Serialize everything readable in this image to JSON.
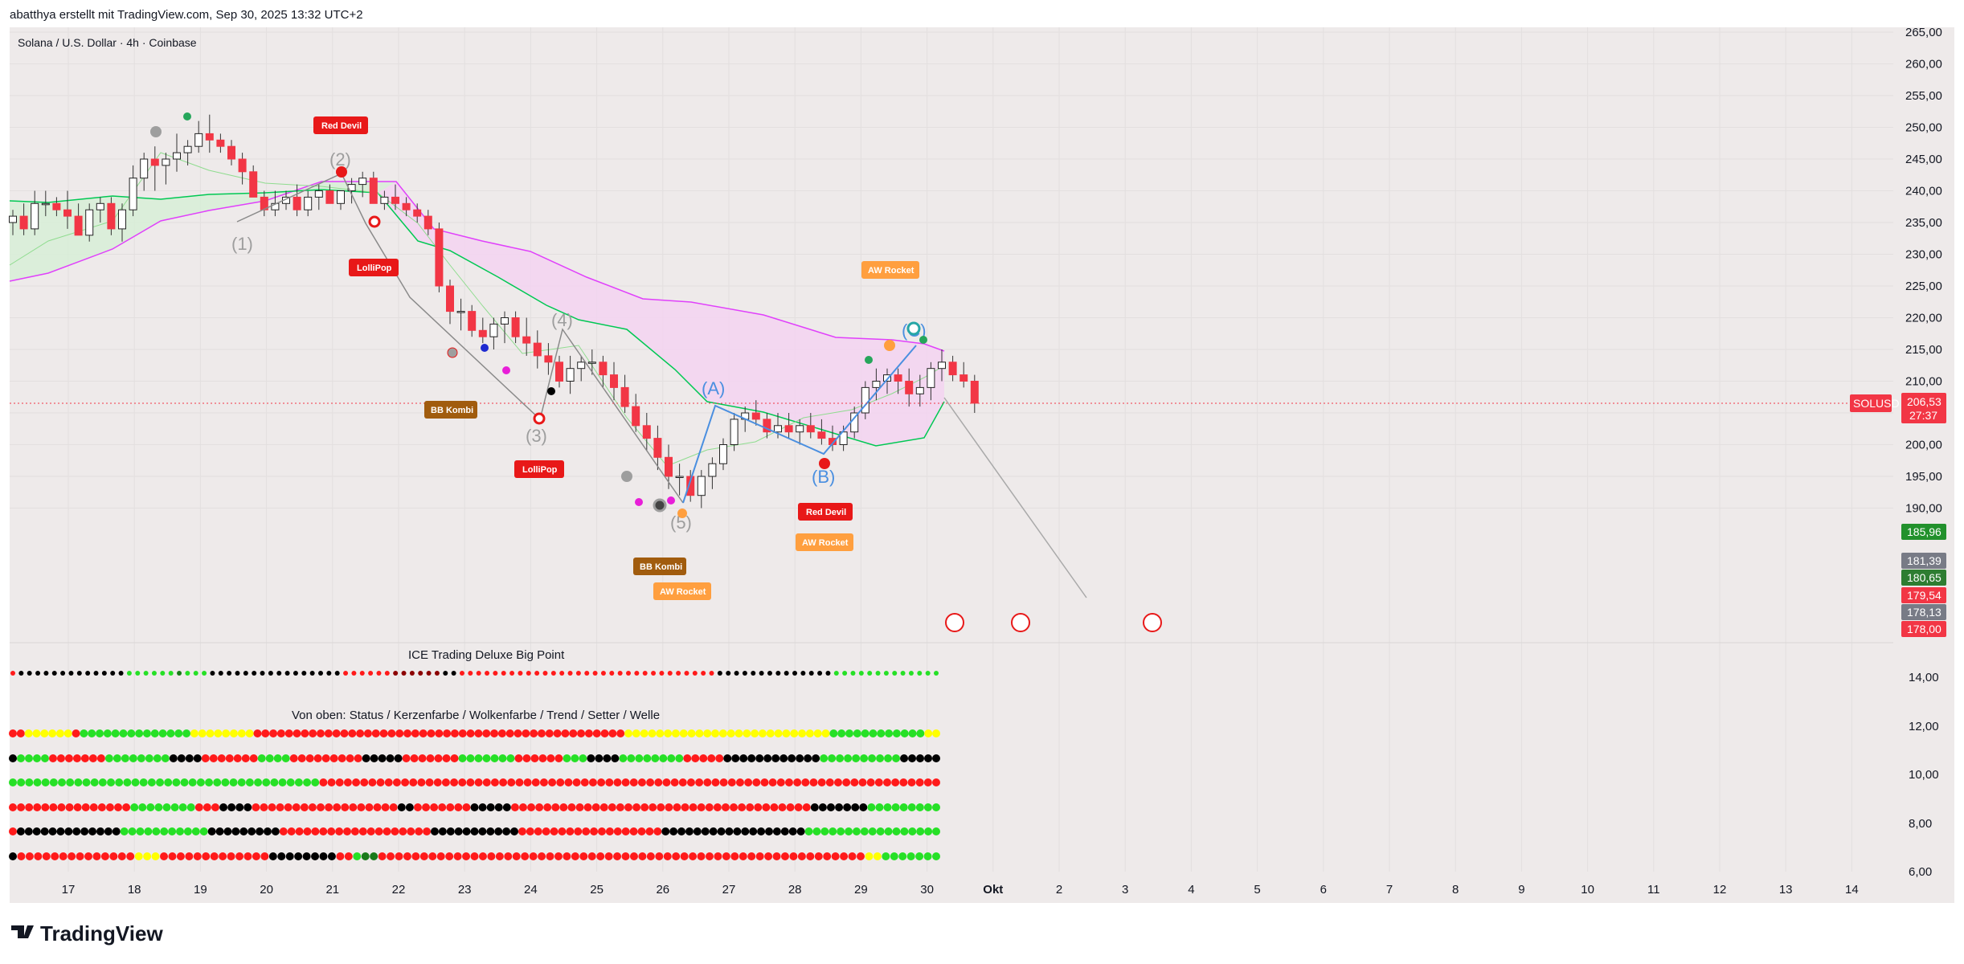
{
  "header": {
    "caption": "abatthya erstellt mit TradingView.com, Sep 30, 2025 13:32 UTC+2",
    "symbol": "Solana / U.S. Dollar · 4h · Coinbase"
  },
  "logo": {
    "text": "TradingView"
  },
  "current_price": {
    "symbol": "SOLUSD",
    "price": "206,53",
    "countdown": "27:37",
    "color": "#f23645"
  },
  "side_labels": [
    {
      "value": "185,96",
      "color": "#22912c"
    },
    {
      "value": "181,39",
      "color": "#787b86"
    },
    {
      "value": "180,65",
      "color": "#2e7d32"
    },
    {
      "value": "179,54",
      "color": "#f23645"
    },
    {
      "value": "178,13",
      "color": "#787b86"
    },
    {
      "value": "178,00",
      "color": "#f23645"
    }
  ],
  "subpanes": {
    "big_point_title": "ICE Trading Deluxe Big Point",
    "matrix_title": "Von oben: Status / Kerzenfarbe / Wolkenfarbe / Trend / Setter / Welle",
    "y_ticks": [
      "14,00",
      "12,00",
      "10,00",
      "8,00",
      "6,00"
    ]
  },
  "signals": {
    "red_devil_1": "Red Devil",
    "lollipop_1": "LolliPop",
    "bb_kombi_1": "BB Kombi",
    "lollipop_2": "LolliPop",
    "bb_kombi_2": "BB Kombi",
    "aw_rocket_1": "AW Rocket",
    "red_devil_2": "Red Devil",
    "aw_rocket_2": "AW Rocket",
    "aw_rocket_3": "AW Rocket"
  },
  "waves": {
    "w1": "(1)",
    "w2": "(2)",
    "w3": "(3)",
    "w4": "(4)",
    "w5": "(5)",
    "wa": "(A)",
    "wb": "(B)",
    "wc": "(C)"
  },
  "colors": {
    "bull": "#4caf50",
    "bear": "#f23645",
    "cloud_upper": "#e040fb",
    "cloud_lower": "#00c853",
    "cloud_fill": "#f3d4f1",
    "green_fill": "#d6efd6",
    "background": "#eeeaea"
  },
  "chart_data": {
    "type": "candlestick",
    "title": "Solana / U.S. Dollar · 4h · Coinbase",
    "interval": "4h",
    "ylim": [
      185,
      265
    ],
    "y_ticks": [
      "265,00",
      "260,00",
      "255,00",
      "250,00",
      "245,00",
      "240,00",
      "235,00",
      "230,00",
      "225,00",
      "220,00",
      "215,00",
      "210,00",
      "205,00",
      "200,00",
      "195,00",
      "190,00"
    ],
    "x_ticks": [
      "17",
      "18",
      "19",
      "20",
      "21",
      "22",
      "23",
      "24",
      "25",
      "26",
      "27",
      "28",
      "29",
      "30",
      "Okt",
      "2",
      "3",
      "4",
      "5",
      "6",
      "7",
      "8",
      "9",
      "10",
      "11",
      "12",
      "13",
      "14"
    ],
    "grid": true,
    "ohlc": [
      [
        235,
        237,
        233,
        236
      ],
      [
        236,
        238,
        233,
        234
      ],
      [
        234,
        240,
        233,
        238
      ],
      [
        238,
        240,
        236,
        238
      ],
      [
        238,
        239,
        236,
        237
      ],
      [
        237,
        240,
        234,
        236
      ],
      [
        236,
        238,
        233,
        233
      ],
      [
        233,
        238,
        232,
        237
      ],
      [
        237,
        239,
        235,
        238
      ],
      [
        238,
        239,
        233,
        234
      ],
      [
        234,
        238,
        232,
        237
      ],
      [
        237,
        244,
        236,
        242
      ],
      [
        242,
        246,
        240,
        245
      ],
      [
        245,
        247,
        240,
        244
      ],
      [
        244,
        246,
        241,
        245
      ],
      [
        245,
        249,
        243,
        246
      ],
      [
        246,
        248,
        244,
        247
      ],
      [
        247,
        251,
        246,
        249
      ],
      [
        249,
        252,
        246,
        248
      ],
      [
        248,
        249,
        246,
        247
      ],
      [
        247,
        248,
        244,
        245
      ],
      [
        245,
        246,
        241,
        243
      ],
      [
        243,
        244,
        239,
        239
      ],
      [
        239,
        240,
        236,
        237
      ],
      [
        237,
        240,
        236,
        238
      ],
      [
        238,
        240,
        237,
        239
      ],
      [
        239,
        241,
        236,
        237
      ],
      [
        237,
        240,
        236,
        239
      ],
      [
        239,
        241,
        237,
        240
      ],
      [
        240,
        241,
        238,
        238
      ],
      [
        238,
        240,
        237,
        240
      ],
      [
        240,
        242,
        238,
        241
      ],
      [
        241,
        243,
        239,
        242
      ],
      [
        242,
        243,
        238,
        238
      ],
      [
        238,
        240,
        237,
        239
      ],
      [
        239,
        241,
        237,
        238
      ],
      [
        238,
        239,
        236,
        237
      ],
      [
        237,
        238,
        235,
        236
      ],
      [
        236,
        237,
        233,
        234
      ],
      [
        234,
        235,
        224,
        225
      ],
      [
        225,
        226,
        219,
        221
      ],
      [
        221,
        223,
        218,
        221
      ],
      [
        221,
        222,
        217,
        218
      ],
      [
        218,
        220,
        216,
        217
      ],
      [
        217,
        220,
        215,
        219
      ],
      [
        219,
        221,
        216,
        220
      ],
      [
        220,
        221,
        216,
        217
      ],
      [
        217,
        220,
        214,
        216
      ],
      [
        216,
        218,
        212,
        214
      ],
      [
        214,
        216,
        211,
        213
      ],
      [
        213,
        214,
        209,
        210
      ],
      [
        210,
        214,
        208,
        212
      ],
      [
        212,
        214,
        210,
        213
      ],
      [
        213,
        215,
        211,
        213
      ],
      [
        213,
        214,
        209,
        211
      ],
      [
        211,
        213,
        207,
        209
      ],
      [
        209,
        211,
        205,
        206
      ],
      [
        206,
        208,
        202,
        203
      ],
      [
        203,
        205,
        199,
        201
      ],
      [
        201,
        203,
        196,
        198
      ],
      [
        198,
        200,
        193,
        195
      ],
      [
        195,
        197,
        192,
        195
      ],
      [
        195,
        196,
        191,
        192
      ],
      [
        192,
        196,
        190,
        195
      ],
      [
        195,
        198,
        193,
        197
      ],
      [
        197,
        201,
        196,
        200
      ],
      [
        200,
        205,
        199,
        204
      ],
      [
        204,
        206,
        202,
        205
      ],
      [
        205,
        207,
        203,
        204
      ],
      [
        204,
        205,
        201,
        202
      ],
      [
        202,
        205,
        201,
        203
      ],
      [
        203,
        205,
        201,
        202
      ],
      [
        202,
        204,
        200,
        203
      ],
      [
        203,
        205,
        201,
        202
      ],
      [
        202,
        204,
        200,
        201
      ],
      [
        201,
        203,
        199,
        200
      ],
      [
        200,
        203,
        199,
        202
      ],
      [
        202,
        206,
        201,
        205
      ],
      [
        205,
        210,
        204,
        209
      ],
      [
        209,
        212,
        207,
        210
      ],
      [
        210,
        212,
        208,
        211
      ],
      [
        211,
        212,
        208,
        210
      ],
      [
        210,
        212,
        206,
        208
      ],
      [
        208,
        211,
        206,
        209
      ],
      [
        209,
        213,
        207,
        212
      ],
      [
        212,
        215,
        210,
        213
      ],
      [
        213,
        214,
        210,
        211
      ],
      [
        211,
        213,
        209,
        210
      ],
      [
        210,
        211,
        205,
        206.53
      ]
    ]
  }
}
